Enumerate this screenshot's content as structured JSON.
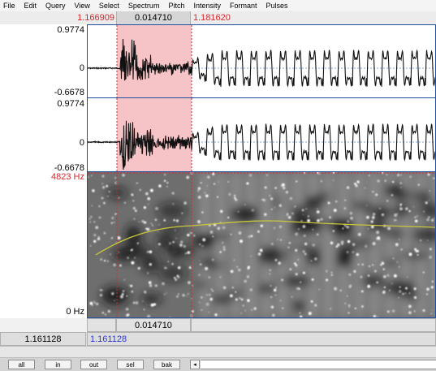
{
  "menu": [
    "File",
    "Edit",
    "Query",
    "View",
    "Select",
    "Spectrum",
    "Pitch",
    "Intensity",
    "Formant",
    "Pulses"
  ],
  "selection": {
    "start": "1.166909",
    "duration": "0.014710",
    "end": "1.181620"
  },
  "waveform": {
    "top_label": "0.9774",
    "zero_label": "0",
    "bottom_label": "-0.6678"
  },
  "spectrogram": {
    "top_label": "4823 Hz",
    "bottom_label": "0 Hz"
  },
  "bottom": {
    "selection_duration": "0.014710"
  },
  "total": {
    "visible_duration": "1.161128",
    "total_duration": "1.161128"
  },
  "buttons": [
    "all",
    "in",
    "out",
    "sel",
    "bak"
  ],
  "scroll_left": "◂",
  "colors": {
    "selection_fill": "#f6c4c6",
    "panel_border": "#1e4fa1",
    "cursor_red": "#d8262b",
    "pitch_curve": "#c8c83c"
  }
}
